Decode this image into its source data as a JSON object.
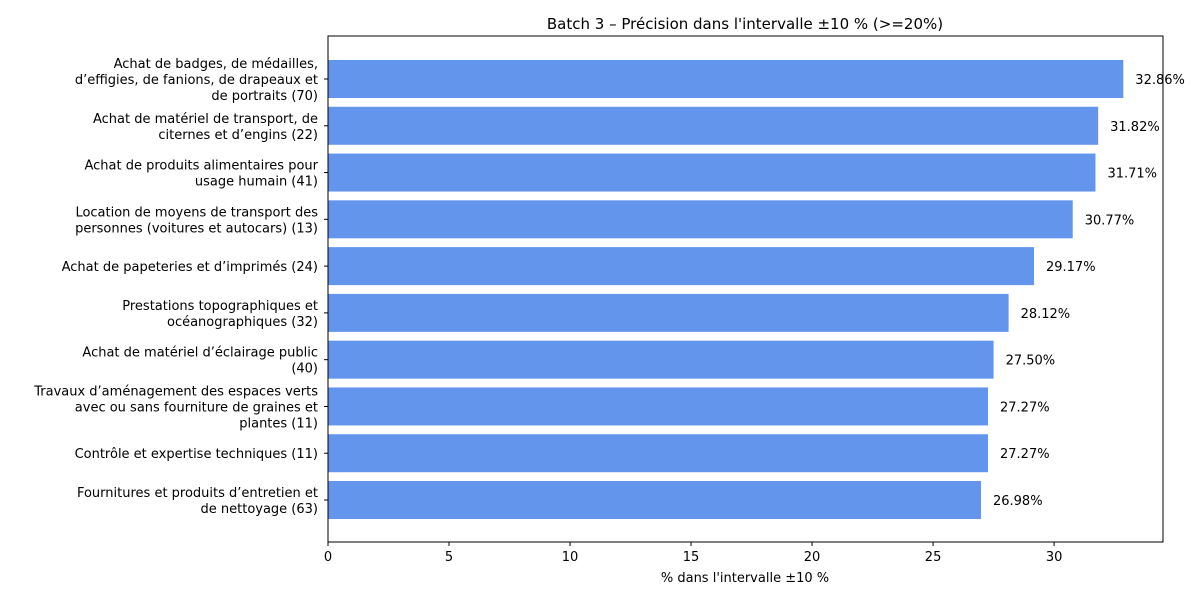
{
  "chart_data": {
    "type": "bar",
    "orientation": "horizontal",
    "title": "Batch 3 – Précision dans l'intervalle ±10 % (>=20%)",
    "xlabel": "% dans l'intervalle ±10 %",
    "ylabel": "",
    "xlim": [
      0,
      34.5
    ],
    "xticks": [
      "0",
      "5",
      "10",
      "15",
      "20",
      "25",
      "30"
    ],
    "grid": false,
    "bar_color": "#6495ED",
    "categories": [
      [
        "Achat de badges, de médailles,",
        "d’effigies, de fanions, de drapeaux et",
        "de portraits (70)"
      ],
      [
        "Achat de matériel de transport, de",
        "citernes et d’engins (22)"
      ],
      [
        "Achat de produits alimentaires pour",
        "usage humain (41)"
      ],
      [
        "Location de moyens de transport des",
        "personnes (voitures et autocars) (13)"
      ],
      [
        "Achat de papeteries et d’imprimés (24)"
      ],
      [
        "Prestations topographiques et",
        "océanographiques (32)"
      ],
      [
        "Achat de matériel d’éclairage public",
        "(40)"
      ],
      [
        "Travaux d’aménagement des espaces verts",
        "avec ou sans fourniture de graines et",
        "plantes (11)"
      ],
      [
        "Contrôle et expertise techniques (11)"
      ],
      [
        "Fournitures et produits d’entretien et",
        "de nettoyage (63)"
      ]
    ],
    "values": [
      32.86,
      31.82,
      31.71,
      30.77,
      29.17,
      28.12,
      27.5,
      27.27,
      27.27,
      26.98
    ],
    "data_labels": [
      "32.86%",
      "31.82%",
      "31.71%",
      "30.77%",
      "29.17%",
      "28.12%",
      "27.50%",
      "27.27%",
      "27.27%",
      "26.98%"
    ]
  }
}
